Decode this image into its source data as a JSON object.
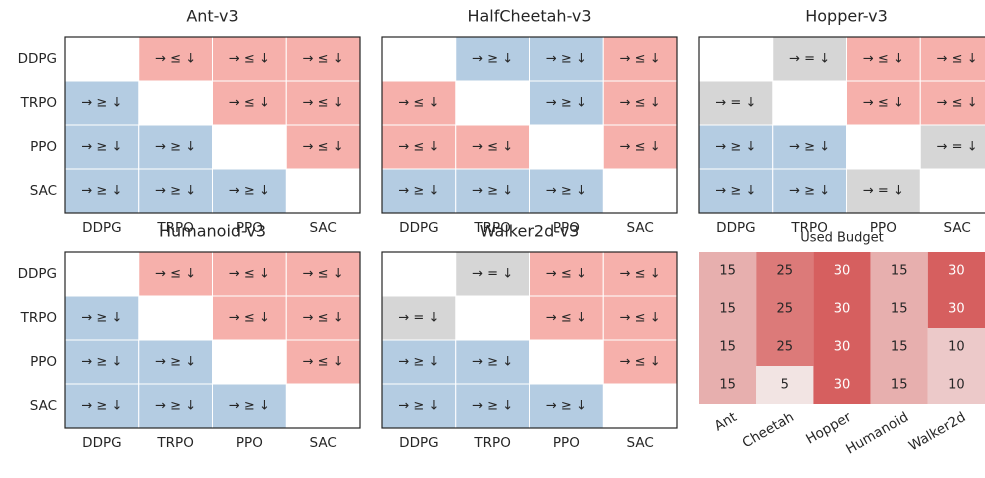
{
  "chart_data": [
    {
      "type": "matrix",
      "title": "Ant-v3",
      "rows": [
        "DDPG",
        "TRPO",
        "PPO",
        "SAC"
      ],
      "columns": [
        "DDPG",
        "TRPO",
        "PPO",
        "SAC"
      ],
      "cells": [
        [
          null,
          "→ ≤ ↓",
          "→ ≤ ↓",
          "→ ≤ ↓"
        ],
        [
          "→ ≥ ↓",
          null,
          "→ ≤ ↓",
          "→ ≤ ↓"
        ],
        [
          "→ ≥ ↓",
          "→ ≥ ↓",
          null,
          "→ ≤ ↓"
        ],
        [
          "→ ≥ ↓",
          "→ ≥ ↓",
          "→ ≥ ↓",
          null
        ]
      ],
      "colors": {
        "→ ≤ ↓": "#f6b0ab",
        "→ ≥ ↓": "#b4cce2",
        "→ = ↓": "#d6d6d6"
      }
    },
    {
      "type": "matrix",
      "title": "HalfCheetah-v3",
      "columns": [
        "DDPG",
        "TRPO",
        "PPO",
        "SAC"
      ],
      "cells": [
        [
          null,
          "→ ≥ ↓",
          "→ ≥ ↓",
          "→ ≤ ↓"
        ],
        [
          "→ ≤ ↓",
          null,
          "→ ≥ ↓",
          "→ ≤ ↓"
        ],
        [
          "→ ≤ ↓",
          "→ ≤ ↓",
          null,
          "→ ≤ ↓"
        ],
        [
          "→ ≥ ↓",
          "→ ≥ ↓",
          "→ ≥ ↓",
          null
        ]
      ],
      "colors": {
        "→ ≤ ↓": "#f6b0ab",
        "→ ≥ ↓": "#b4cce2",
        "→ = ↓": "#d6d6d6"
      }
    },
    {
      "type": "matrix",
      "title": "Hopper-v3",
      "columns": [
        "DDPG",
        "TRPO",
        "PPO",
        "SAC"
      ],
      "cells": [
        [
          null,
          "→ = ↓",
          "→ ≤ ↓",
          "→ ≤ ↓"
        ],
        [
          "→ = ↓",
          null,
          "→ ≤ ↓",
          "→ ≤ ↓"
        ],
        [
          "→ ≥ ↓",
          "→ ≥ ↓",
          null,
          "→ = ↓"
        ],
        [
          "→ ≥ ↓",
          "→ ≥ ↓",
          "→ = ↓",
          null
        ]
      ],
      "colors": {
        "→ ≤ ↓": "#f6b0ab",
        "→ ≥ ↓": "#b4cce2",
        "→ = ↓": "#d6d6d6"
      }
    },
    {
      "type": "matrix",
      "title": "Humanoid-v3",
      "rows": [
        "DDPG",
        "TRPO",
        "PPO",
        "SAC"
      ],
      "columns": [
        "DDPG",
        "TRPO",
        "PPO",
        "SAC"
      ],
      "cells": [
        [
          null,
          "→ ≤ ↓",
          "→ ≤ ↓",
          "→ ≤ ↓"
        ],
        [
          "→ ≥ ↓",
          null,
          "→ ≤ ↓",
          "→ ≤ ↓"
        ],
        [
          "→ ≥ ↓",
          "→ ≥ ↓",
          null,
          "→ ≤ ↓"
        ],
        [
          "→ ≥ ↓",
          "→ ≥ ↓",
          "→ ≥ ↓",
          null
        ]
      ],
      "colors": {
        "→ ≤ ↓": "#f6b0ab",
        "→ ≥ ↓": "#b4cce2",
        "→ = ↓": "#d6d6d6"
      }
    },
    {
      "type": "matrix",
      "title": "Walker2d-v3",
      "columns": [
        "DDPG",
        "TRPO",
        "PPO",
        "SAC"
      ],
      "cells": [
        [
          null,
          "→ = ↓",
          "→ ≤ ↓",
          "→ ≤ ↓"
        ],
        [
          "→ = ↓",
          null,
          "→ ≤ ↓",
          "→ ≤ ↓"
        ],
        [
          "→ ≥ ↓",
          "→ ≥ ↓",
          null,
          "→ ≤ ↓"
        ],
        [
          "→ ≥ ↓",
          "→ ≥ ↓",
          "→ ≥ ↓",
          null
        ]
      ],
      "colors": {
        "→ ≤ ↓": "#f6b0ab",
        "→ ≥ ↓": "#b4cce2",
        "→ = ↓": "#d6d6d6"
      }
    },
    {
      "type": "heatmap",
      "title": "Used Budget",
      "columns": [
        "Ant",
        "Cheetah",
        "Hopper",
        "Humanoid",
        "Walker2d"
      ],
      "values": [
        [
          15,
          25,
          30,
          15,
          30
        ],
        [
          15,
          25,
          30,
          15,
          30
        ],
        [
          15,
          25,
          30,
          15,
          10
        ],
        [
          15,
          5,
          30,
          15,
          10
        ]
      ],
      "colormap": [
        "#f2e4e3",
        "#d65f5f"
      ],
      "vlim": [
        5,
        30
      ]
    }
  ]
}
